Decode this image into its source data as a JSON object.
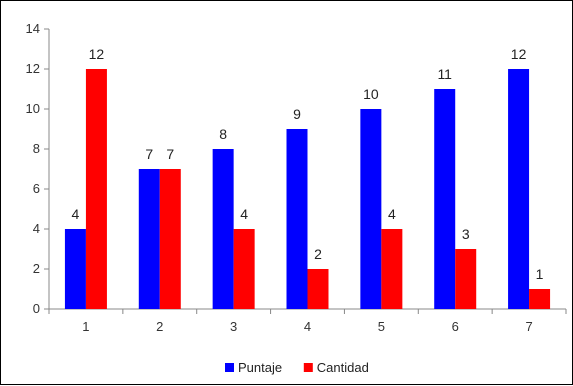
{
  "chart_data": {
    "type": "bar",
    "title": "",
    "xlabel": "",
    "ylabel": "",
    "categories": [
      "1",
      "2",
      "3",
      "4",
      "5",
      "6",
      "7"
    ],
    "series": [
      {
        "name": "Puntaje",
        "color": "#0000ff",
        "values": [
          4,
          7,
          8,
          9,
          10,
          11,
          12
        ]
      },
      {
        "name": "Cantidad",
        "color": "#ff0000",
        "values": [
          12,
          7,
          4,
          2,
          4,
          3,
          1
        ]
      }
    ],
    "ylim": [
      0,
      14
    ],
    "yticks": [
      0,
      2,
      4,
      6,
      8,
      10,
      12,
      14
    ],
    "grid": false,
    "data_labels": true,
    "legend_position": "bottom"
  }
}
